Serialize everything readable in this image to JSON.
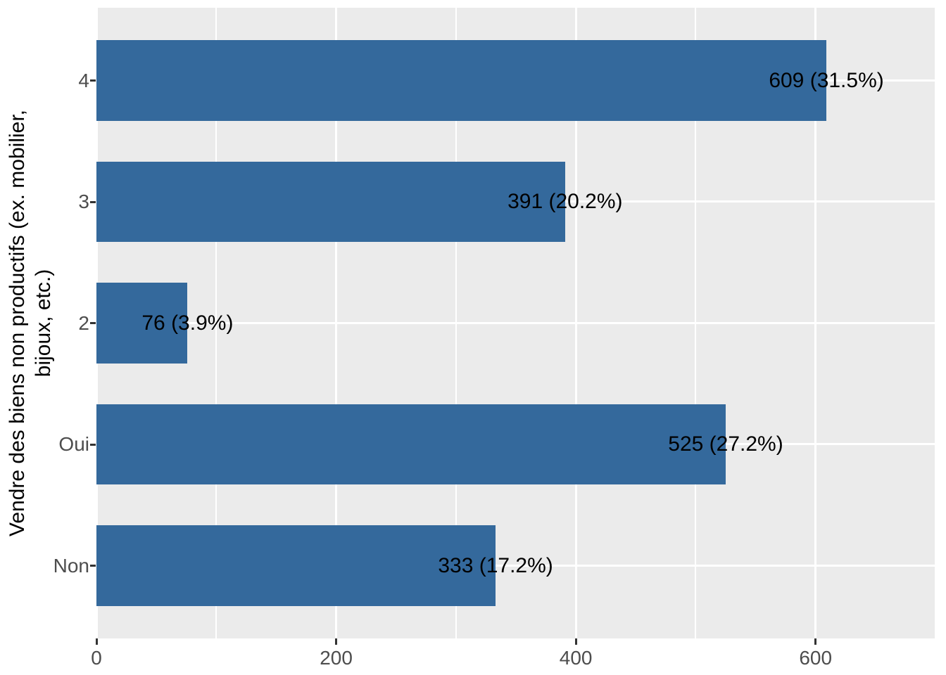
{
  "chart_data": {
    "type": "bar",
    "orientation": "horizontal",
    "ylabel_line1": "Vendre des biens non productifs (ex. mobilier,",
    "ylabel_line2": "bijoux, etc.)",
    "categories": [
      "4",
      "3",
      "2",
      "Oui",
      "Non"
    ],
    "values": [
      609,
      391,
      76,
      525,
      333
    ],
    "percents": [
      31.5,
      20.2,
      3.9,
      27.2,
      17.2
    ],
    "bar_labels": [
      "609 (31.5%)",
      "391 (20.2%)",
      "76 (3.9%)",
      "525 (27.2%)",
      "333 (17.2%)"
    ],
    "xlim": [
      0,
      700
    ],
    "x_major_ticks": [
      0,
      200,
      400,
      600
    ],
    "x_tick_labels": [
      "0",
      "200",
      "400",
      "600"
    ],
    "x_minor_ticks": [
      100,
      300,
      500,
      700
    ],
    "grid": true,
    "legend": false,
    "colors": {
      "bar": "#34699C",
      "panel_bg": "#EBEBEB",
      "grid": "#FFFFFF",
      "axis_text": "#4D4D4D",
      "label_text": "#000000",
      "tick_mark": "#333333",
      "background": "#FFFFFF"
    }
  }
}
